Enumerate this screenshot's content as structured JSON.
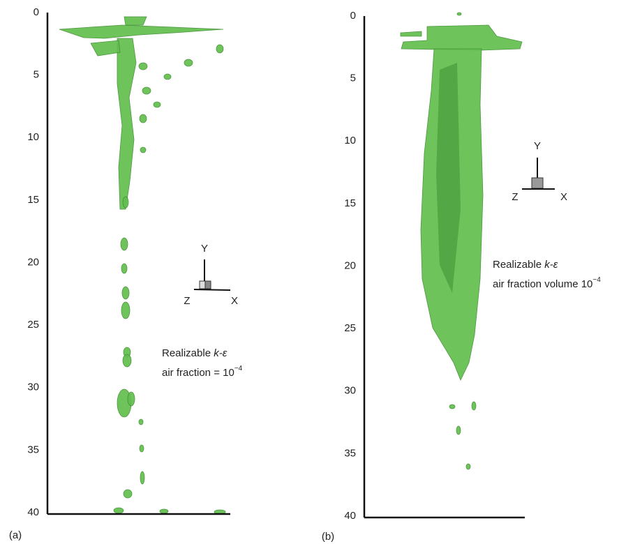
{
  "chart_data": [
    {
      "type": "surface",
      "label": "(a)",
      "ylim": [
        0,
        40
      ],
      "yticks": [
        0,
        5,
        10,
        15,
        20,
        25,
        30,
        35,
        40
      ],
      "model": "Realizable",
      "model_symbol": "k-ε",
      "annotation": "air fraction = 10",
      "exponent": "−4",
      "axis_labels": [
        "Y",
        "Z",
        "X"
      ]
    },
    {
      "type": "surface",
      "label": "(b)",
      "ylim": [
        0,
        40
      ],
      "yticks": [
        0,
        5,
        10,
        15,
        20,
        25,
        30,
        35,
        40
      ],
      "model": "Realizable",
      "model_symbol": "k-ε",
      "annotation": "air fraction volume 10",
      "exponent": "−4",
      "axis_labels": [
        "Y",
        "Z",
        "X"
      ]
    }
  ]
}
